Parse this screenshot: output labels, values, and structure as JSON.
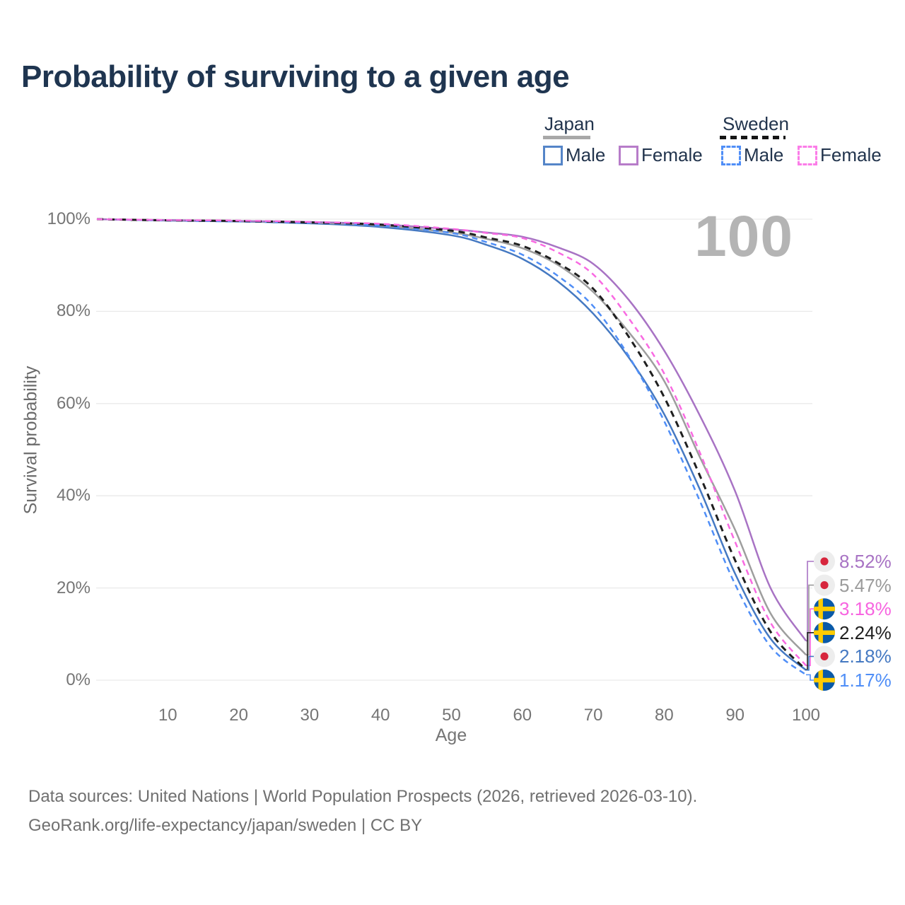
{
  "title": "Probability of surviving to a given age",
  "watermark": "100",
  "legend": {
    "groups": [
      {
        "label": "Japan",
        "line_style": "solid",
        "items": [
          {
            "label": "Male",
            "color": "#4579c2",
            "dash": false
          },
          {
            "label": "Female",
            "color": "#b77cc9",
            "dash": false
          }
        ]
      },
      {
        "label": "Sweden",
        "line_style": "dashed",
        "items": [
          {
            "label": "Male",
            "color": "#4f8ef7",
            "dash": true
          },
          {
            "label": "Female",
            "color": "#fb7ce8",
            "dash": true
          }
        ]
      }
    ]
  },
  "chart_data": {
    "type": "line",
    "title": "Probability of surviving to a given age",
    "xlabel": "Age",
    "ylabel": "Survival probability",
    "xlim": [
      0,
      100
    ],
    "ylim": [
      0,
      100
    ],
    "x_ticks": [
      10,
      20,
      30,
      40,
      50,
      60,
      70,
      80,
      90,
      100
    ],
    "y_ticks": [
      0,
      20,
      40,
      60,
      80,
      100
    ],
    "y_tick_suffix": "%",
    "grid": "horizontal",
    "x": [
      0,
      10,
      20,
      30,
      40,
      50,
      55,
      60,
      65,
      70,
      75,
      80,
      85,
      90,
      95,
      100
    ],
    "series": [
      {
        "name": "Japan Male",
        "country": "Japan",
        "sex": "Male",
        "color": "#4579c2",
        "dash": null,
        "width": 2.5,
        "values": [
          100,
          99.7,
          99.5,
          99.1,
          98.3,
          96.5,
          94.4,
          91.4,
          86.5,
          79.5,
          70.0,
          57.7,
          41.5,
          23.1,
          9.0,
          2.18
        ]
      },
      {
        "name": "Japan",
        "country": "Japan",
        "sex": "All",
        "color": "#9e9e9e",
        "dash": null,
        "width": 2.5,
        "values": [
          100,
          99.75,
          99.55,
          99.25,
          98.6,
          97.1,
          95.7,
          93.7,
          90.1,
          84.2,
          75.5,
          64.9,
          48.5,
          32.6,
          14.5,
          5.47
        ]
      },
      {
        "name": "Japan Female",
        "country": "Japan",
        "sex": "Female",
        "color": "#a873c4",
        "dash": null,
        "width": 2.5,
        "values": [
          100,
          99.8,
          99.6,
          99.4,
          98.9,
          97.8,
          97.1,
          96.2,
          93.9,
          90.3,
          82.5,
          71.5,
          57.5,
          41.0,
          20.0,
          8.52
        ]
      },
      {
        "name": "Sweden Male",
        "country": "Sweden",
        "sex": "Male",
        "color": "#4f8ef7",
        "dash": "8 6",
        "width": 2.5,
        "values": [
          100,
          99.7,
          99.5,
          99.2,
          98.6,
          97.0,
          95.0,
          92.3,
          87.7,
          81.1,
          70.3,
          56.2,
          39.0,
          20.8,
          7.3,
          1.17
        ]
      },
      {
        "name": "Sweden",
        "country": "Sweden",
        "sex": "All",
        "color": "#1f1f1f",
        "dash": "9 7",
        "width": 3,
        "values": [
          100,
          99.75,
          99.6,
          99.3,
          98.8,
          97.5,
          96.0,
          94.2,
          90.5,
          84.9,
          74.5,
          61.4,
          44.5,
          26.0,
          10.5,
          2.24
        ]
      },
      {
        "name": "Sweden Female",
        "country": "Sweden",
        "sex": "Female",
        "color": "#f96ae2",
        "dash": "8 6",
        "width": 2.5,
        "values": [
          100,
          99.8,
          99.7,
          99.4,
          99.0,
          97.9,
          97.0,
          95.9,
          92.8,
          88.0,
          78.5,
          66.5,
          49.5,
          30.0,
          12.5,
          3.18
        ]
      }
    ],
    "end_labels": [
      {
        "value_label": "8.52%",
        "value": 8.52,
        "series": "Japan Female",
        "flag": "japan",
        "color": "#a873c4"
      },
      {
        "value_label": "5.47%",
        "value": 5.47,
        "series": "Japan",
        "flag": "japan",
        "color": "#9b9b9b"
      },
      {
        "value_label": "3.18%",
        "value": 3.18,
        "series": "Sweden Female",
        "flag": "sweden",
        "color": "#f764e0"
      },
      {
        "value_label": "2.24%",
        "value": 2.24,
        "series": "Sweden",
        "flag": "sweden",
        "color": "#1f1f1f"
      },
      {
        "value_label": "2.18%",
        "value": 2.18,
        "series": "Japan Male",
        "flag": "japan",
        "color": "#4579c2"
      },
      {
        "value_label": "1.17%",
        "value": 1.17,
        "series": "Sweden Male",
        "flag": "sweden",
        "color": "#4f8ef7"
      }
    ],
    "hover_age": 100
  },
  "flag_colors": {
    "japan_bg": "#ededed",
    "japan_dot": "#d7263d",
    "sweden_bg": "#0a5aa8",
    "sweden_cross": "#fecb00"
  },
  "footer": {
    "line1": "Data sources: United Nations | World Population Prospects (2026, retrieved 2026-03-10).",
    "line2": "GeoRank.org/life-expectancy/japan/sweden | CC BY"
  }
}
